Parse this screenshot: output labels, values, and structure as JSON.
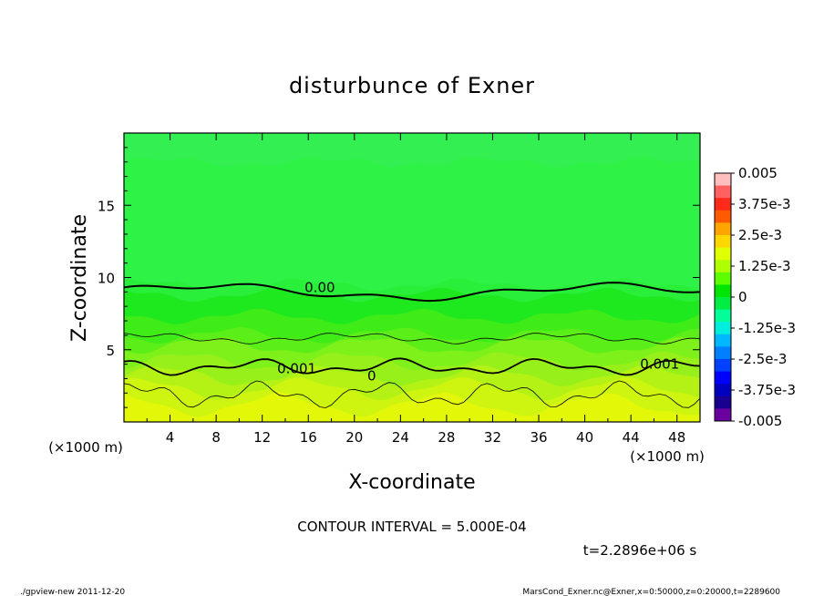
{
  "chart_data": {
    "type": "contour",
    "title": "disturbunce of Exner",
    "xlabel": "X-coordinate",
    "ylabel": "Z-coordinate",
    "x_unit": "(×1000 m)",
    "y_unit": "(×1000 m)",
    "xlim": [
      0,
      50
    ],
    "ylim": [
      0,
      20
    ],
    "x_ticks": [
      "4",
      "8",
      "12",
      "16",
      "20",
      "24",
      "28",
      "32",
      "36",
      "40",
      "44",
      "48"
    ],
    "y_ticks": [
      "5",
      "10",
      "15"
    ],
    "x_tick_values": [
      4,
      8,
      12,
      16,
      20,
      24,
      28,
      32,
      36,
      40,
      44,
      48
    ],
    "y_tick_values": [
      5,
      10,
      15
    ],
    "contour_labels": [
      {
        "text": "0.00",
        "x": 17.0,
        "z": 9.3
      },
      {
        "text": "0.001",
        "x": 15.0,
        "z": 3.7
      },
      {
        "text": "0",
        "x": 21.5,
        "z": 3.2
      },
      {
        "text": "0.001",
        "x": 46.5,
        "z": 4.0
      }
    ],
    "contour_interval": "CONTOUR INTERVAL = 5.000E-04",
    "time_label": "t=2.2896e+06 s",
    "colorbar": {
      "min": -0.005,
      "max": 0.005,
      "labels": [
        "0.005",
        "3.75e-3",
        "2.5e-3",
        "1.25e-3",
        "0",
        "-1.25e-3",
        "-2.5e-3",
        "-3.75e-3",
        "-0.005"
      ],
      "label_values": [
        0.005,
        0.00375,
        0.0025,
        0.00125,
        0,
        -0.00125,
        -0.0025,
        -0.00375,
        -0.005
      ],
      "colors": [
        "#ffbfbf",
        "#ff6060",
        "#ff2a1a",
        "#ff5a00",
        "#ffa500",
        "#ffd700",
        "#e0ff00",
        "#b0ff00",
        "#5cff00",
        "#00e600",
        "#00ee44",
        "#00ff99",
        "#00eedd",
        "#00b8ff",
        "#0080ff",
        "#0040ff",
        "#0000ff",
        "#0000c0",
        "#1a0090",
        "#6a00a0"
      ]
    },
    "contour_bands": [
      {
        "z": 18.0,
        "color": "#2ef246"
      },
      {
        "z": 9.5,
        "color": "#2aef3a"
      },
      {
        "z": 8.8,
        "color": "#1ee81e"
      },
      {
        "z": 7.3,
        "color": "#3fec18"
      },
      {
        "z": 6.0,
        "color": "#5bee18"
      },
      {
        "z": 5.3,
        "color": "#7ef01a"
      },
      {
        "z": 4.2,
        "color": "#98f01a"
      },
      {
        "z": 3.2,
        "color": "#b4f215"
      },
      {
        "z": 2.3,
        "color": "#cdf510"
      },
      {
        "z": 1.2,
        "color": "#e3f808"
      }
    ]
  },
  "footer": {
    "left": "./gpview-new   2011-12-20",
    "right": "MarsCond_Exner.nc@Exner,x=0:50000,z=0:20000,t=2289600"
  }
}
